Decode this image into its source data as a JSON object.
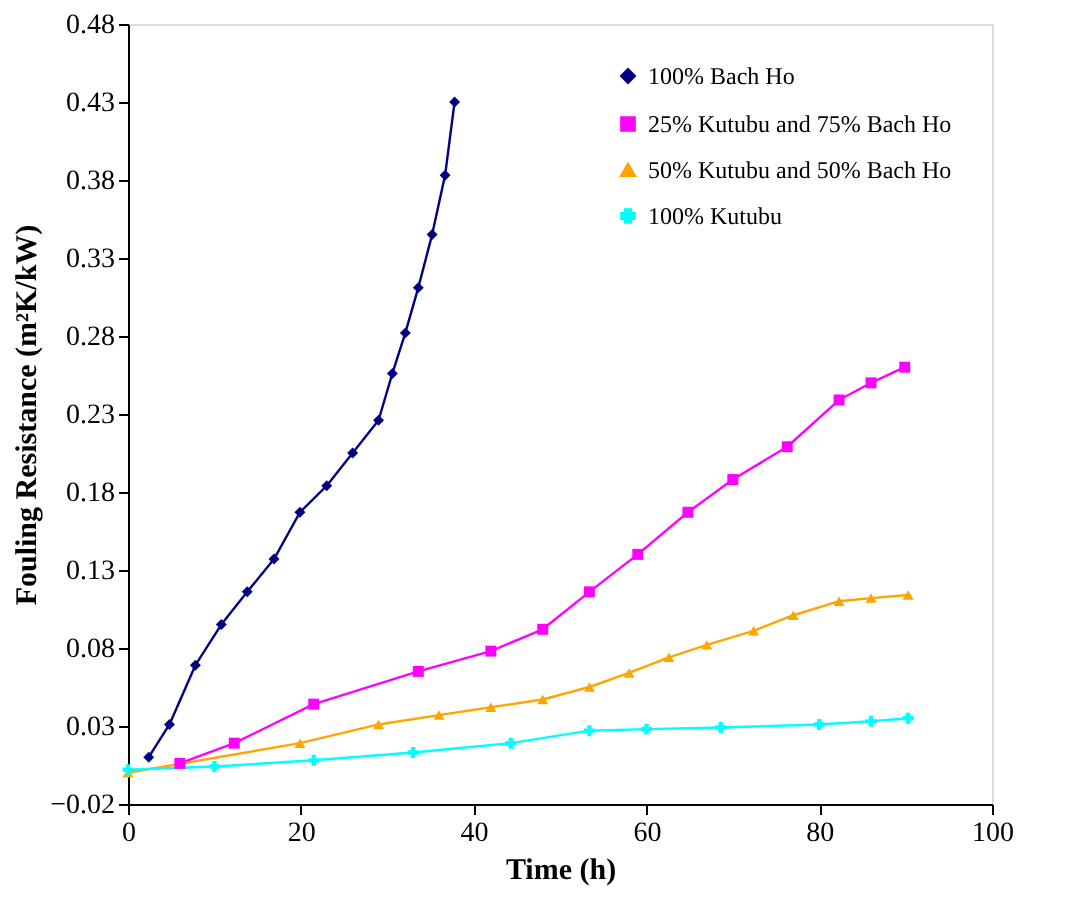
{
  "chart_data": {
    "type": "line",
    "xlabel": "Time (h)",
    "ylabel": "Fouling Resistance (m²K/kW)",
    "xlim": [
      0,
      100
    ],
    "xticks": [
      0,
      20,
      40,
      60,
      80,
      100
    ],
    "ylim": [
      -0.02,
      0.48
    ],
    "yticks": [
      -0.02,
      0.03,
      0.08,
      0.13,
      0.18,
      0.23,
      0.28,
      0.33,
      0.38,
      0.43,
      0.48
    ],
    "grid": false,
    "legend": "top right",
    "line_style": "solid",
    "series": [
      {
        "name": "100% Bach Ho",
        "color": "#000080",
        "marker": "diamond",
        "x": [
          2.4,
          4.8,
          7.8,
          10.8,
          13.8,
          16.9,
          19.9,
          23,
          26,
          29,
          30.6,
          32.1,
          33.6,
          35.2,
          36.7,
          37.8
        ],
        "values": [
          0.01,
          0.031,
          0.069,
          0.095,
          0.116,
          0.137,
          0.167,
          0.184,
          0.205,
          0.226,
          0.256,
          0.282,
          0.311,
          0.345,
          0.383,
          0.43
        ]
      },
      {
        "name": "25% Kutubu and 75% Bach Ho",
        "color": "#ff00ff",
        "marker": "square",
        "x": [
          6,
          12.3,
          21.5,
          33.6,
          42,
          48,
          53.4,
          59,
          64.8,
          70,
          76.3,
          82.3,
          86,
          89.9
        ],
        "values": [
          0.006,
          0.019,
          0.044,
          0.065,
          0.078,
          0.092,
          0.116,
          0.14,
          0.167,
          0.188,
          0.209,
          0.239,
          0.25,
          0.26
        ]
      },
      {
        "name": "50% Kutubu and 50% Bach Ho",
        "color": "#ffa500",
        "marker": "triangle",
        "x": [
          0,
          19.9,
          29,
          36,
          42,
          48,
          53.4,
          58,
          62.6,
          67,
          72.4,
          77,
          82.3,
          86,
          90.3
        ],
        "values": [
          0.0,
          0.019,
          0.031,
          0.037,
          0.042,
          0.047,
          0.055,
          0.064,
          0.074,
          0.082,
          0.091,
          0.101,
          0.11,
          0.112,
          0.114
        ]
      },
      {
        "name": "100% Kutubu",
        "color": "#00ffff",
        "marker": "cross",
        "x": [
          0,
          10,
          21.5,
          33,
          44.3,
          53.4,
          60,
          68.6,
          80,
          86,
          90.3
        ],
        "values": [
          0.002,
          0.004,
          0.008,
          0.013,
          0.019,
          0.027,
          0.028,
          0.029,
          0.031,
          0.033,
          0.035
        ]
      }
    ]
  }
}
